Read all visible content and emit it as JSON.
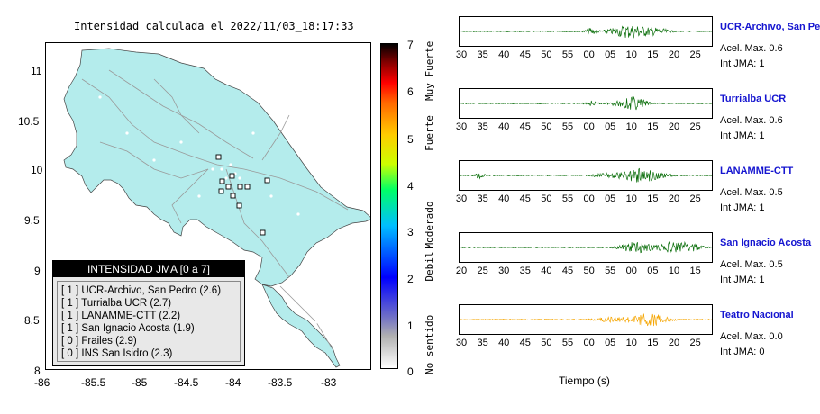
{
  "map": {
    "title": "Intensidad calculada el 2022/11/03_18:17:33",
    "x_ticks": [
      "-86",
      "-85.5",
      "-85",
      "-84.5",
      "-84",
      "-83.5",
      "-83"
    ],
    "y_ticks": [
      "11",
      "10.5",
      "10",
      "9.5",
      "9",
      "8.5",
      "8"
    ]
  },
  "legend": {
    "title": "INTENSIDAD JMA [0 a 7]",
    "items": [
      "[ 1 ]  UCR-Archivo, San Pedro (2.6)",
      "[ 1 ]  Turrialba UCR (2.7)",
      "[ 1 ]  LANAMME-CTT (2.2)",
      "[ 1 ]  San Ignacio Acosta (1.9)",
      "[ 0 ]  Frailes (2.9)",
      "[ 0 ]  INS San Isidro (2.3)"
    ]
  },
  "colorbar": {
    "numbers": [
      "7",
      "6",
      "5",
      "4",
      "3",
      "2",
      "1",
      "0"
    ],
    "labels": [
      "Muy Fuerte",
      "Fuerte",
      "Moderado",
      "Debil",
      "No sentido"
    ]
  },
  "stations": [
    {
      "name": "UCR-Archivo, San Pedro",
      "accel": "Acel. Max. 0.6",
      "jma": "Int JMA: 1",
      "color": "#0a6e0a",
      "ticks": [
        "30",
        "35",
        "40",
        "45",
        "50",
        "55",
        "00",
        "05",
        "10",
        "15",
        "20",
        "25"
      ]
    },
    {
      "name": "Turrialba UCR",
      "accel": "Acel. Max. 0.6",
      "jma": "Int JMA: 1",
      "color": "#0a6e0a",
      "ticks": [
        "30",
        "35",
        "40",
        "45",
        "50",
        "55",
        "00",
        "05",
        "10",
        "15",
        "20",
        "25"
      ]
    },
    {
      "name": "LANAMME-CTT",
      "accel": "Acel. Max. 0.5",
      "jma": "Int JMA: 1",
      "color": "#0a6e0a",
      "ticks": [
        "30",
        "35",
        "40",
        "45",
        "50",
        "55",
        "00",
        "05",
        "10",
        "15",
        "20",
        "25"
      ]
    },
    {
      "name": "San Ignacio Acosta",
      "accel": "Acel. Max. 0.5",
      "jma": "Int JMA: 1",
      "color": "#0a6e0a",
      "ticks": [
        "20",
        "25",
        "30",
        "35",
        "40",
        "45",
        "50",
        "55",
        "00",
        "05",
        "10",
        "15"
      ]
    },
    {
      "name": "Teatro Nacional",
      "accel": "Acel. Max. 0.0",
      "jma": "Int JMA: 0",
      "color": "#f5a500",
      "ticks": [
        "30",
        "35",
        "40",
        "45",
        "50",
        "55",
        "00",
        "05",
        "10",
        "15",
        "20",
        "25"
      ]
    }
  ],
  "xaxis_label": "Tiempo (s)"
}
